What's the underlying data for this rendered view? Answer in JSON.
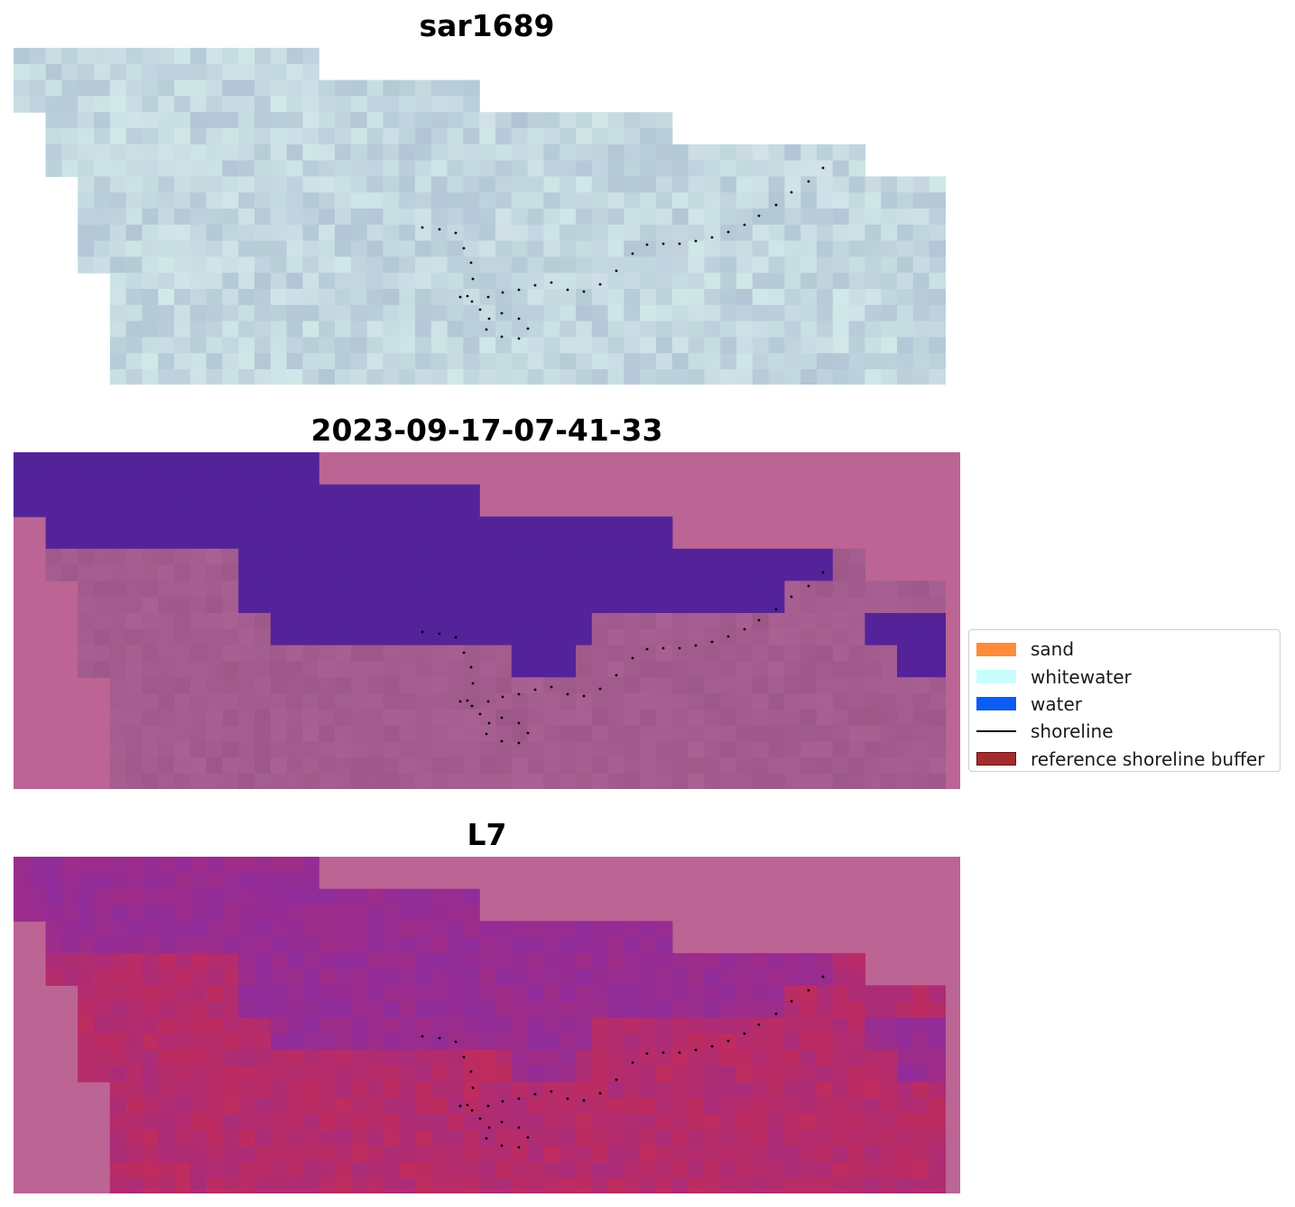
{
  "panels": [
    {
      "title": "sar1689",
      "style": "rgb"
    },
    {
      "title": "2023-09-17-07-41-33",
      "style": "classified"
    },
    {
      "title": "L7",
      "style": "index"
    }
  ],
  "legend": {
    "items": [
      {
        "label": "sand",
        "kind": "patch",
        "color": "#ff8c3a"
      },
      {
        "label": "whitewater",
        "kind": "patch",
        "color": "#c8fdfd"
      },
      {
        "label": "water",
        "kind": "patch",
        "color": "#0b5cf2"
      },
      {
        "label": "shoreline",
        "kind": "line",
        "color": "#000000"
      },
      {
        "label": "reference shoreline buffer",
        "kind": "patch",
        "color": "#a32d2d",
        "edge": "#6b1212"
      }
    ]
  },
  "colors": {
    "masked_background": "#bc6494",
    "water_class": "#54239a",
    "land_class": "#a35c8e",
    "rgb_base": "#c2d6df",
    "index_low": "#6a0fb0",
    "index_high": "#c50d3c",
    "shoreline_dots": "#000000"
  }
}
